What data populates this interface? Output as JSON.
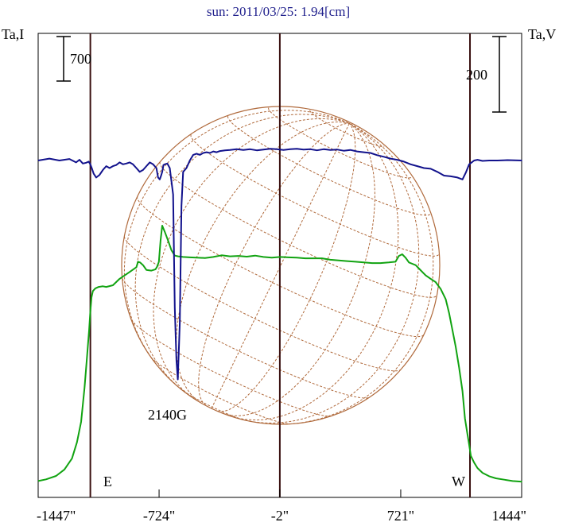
{
  "chart_data": {
    "type": "line",
    "title": "sun: 2011/03/25: 1.94[cm]",
    "left_axis_label": "Ta,I",
    "right_axis_label": "Ta,V",
    "x_ticks": [
      "-1447\"",
      "-724\"",
      "-2\"",
      "721\"",
      "1444\""
    ],
    "x_tick_values": [
      -1447,
      -724,
      -2,
      721,
      1444
    ],
    "xlim": [
      -1447,
      1444
    ],
    "limb_markers": [
      {
        "label": "E",
        "x": -1135
      },
      {
        "label": "W",
        "x": 1135
      }
    ],
    "scale_bars": [
      {
        "series": "Ta,I",
        "label": "700",
        "value": 700
      },
      {
        "series": "Ta,V",
        "label": "200",
        "value": 200
      }
    ],
    "annotation": {
      "text": "2140G",
      "x": -640
    },
    "disk": {
      "has_grid": true,
      "color": "#b06a3c"
    },
    "series": [
      {
        "id": "stokes_I",
        "color": "#11a311",
        "x": [
          -1447,
          -1400,
          -1340,
          -1290,
          -1245,
          -1215,
          -1190,
          -1170,
          -1155,
          -1142,
          -1135,
          -1128,
          -1120,
          -1105,
          -1085,
          -1060,
          -1040,
          -1000,
          -960,
          -900,
          -860,
          -850,
          -838,
          -820,
          -800,
          -770,
          -745,
          -735,
          -725,
          -715,
          -705,
          -690,
          -670,
          -650,
          -630,
          -610,
          -580,
          -540,
          -500,
          -450,
          -400,
          -350,
          -300,
          -250,
          -200,
          -150,
          -100,
          -50,
          0,
          50,
          100,
          150,
          200,
          250,
          300,
          350,
          400,
          450,
          500,
          550,
          600,
          650,
          690,
          710,
          730,
          750,
          770,
          790,
          810,
          830,
          850,
          870,
          900,
          930,
          960,
          990,
          1010,
          1030,
          1050,
          1070,
          1090,
          1105,
          1118,
          1128,
          1140,
          1160,
          1180,
          1210,
          1250,
          1290,
          1340,
          1390,
          1447
        ],
        "y": [
          30,
          55,
          105,
          200,
          360,
          600,
          900,
          1400,
          1850,
          2250,
          2520,
          2730,
          2820,
          2860,
          2880,
          2890,
          2880,
          2905,
          3000,
          3100,
          3170,
          3250,
          3240,
          3200,
          3130,
          3120,
          3140,
          3180,
          3250,
          3560,
          3780,
          3690,
          3560,
          3420,
          3340,
          3330,
          3320,
          3315,
          3310,
          3305,
          3320,
          3345,
          3330,
          3335,
          3325,
          3340,
          3320,
          3310,
          3320,
          3315,
          3310,
          3300,
          3300,
          3300,
          3280,
          3270,
          3260,
          3250,
          3240,
          3230,
          3230,
          3240,
          3250,
          3335,
          3360,
          3310,
          3240,
          3220,
          3200,
          3150,
          3100,
          3050,
          3000,
          2950,
          2850,
          2700,
          2500,
          2250,
          2000,
          1700,
          1350,
          950,
          750,
          600,
          400,
          300,
          220,
          150,
          100,
          70,
          50,
          30,
          20
        ]
      },
      {
        "id": "stokes_V",
        "color": "#12128c",
        "x": [
          -1447,
          -1380,
          -1320,
          -1260,
          -1220,
          -1200,
          -1180,
          -1160,
          -1145,
          -1135,
          -1125,
          -1115,
          -1100,
          -1080,
          -1060,
          -1040,
          -1020,
          -1000,
          -980,
          -960,
          -940,
          -920,
          -900,
          -880,
          -860,
          -840,
          -820,
          -800,
          -780,
          -760,
          -740,
          -730,
          -720,
          -712,
          -705,
          -698,
          -690,
          -675,
          -660,
          -640,
          -630,
          -620,
          -612,
          -600,
          -590,
          -580,
          -560,
          -540,
          -520,
          -500,
          -480,
          -460,
          -440,
          -420,
          -400,
          -380,
          -360,
          -330,
          -300,
          -260,
          -220,
          -180,
          -140,
          -100,
          -60,
          -20,
          20,
          60,
          100,
          140,
          180,
          220,
          260,
          300,
          340,
          380,
          420,
          460,
          500,
          540,
          580,
          620,
          660,
          700,
          740,
          780,
          820,
          860,
          900,
          940,
          980,
          1020,
          1060,
          1090,
          1110,
          1130,
          1145,
          1160,
          1180,
          1210,
          1250,
          1300,
          1360,
          1447
        ],
        "y": [
          0,
          5,
          0,
          4,
          -5,
          2,
          -8,
          -6,
          -3,
          -10,
          -22,
          -35,
          -45,
          -38,
          -25,
          -15,
          -20,
          -15,
          -12,
          -5,
          -10,
          -8,
          -5,
          -10,
          -20,
          -30,
          -25,
          -15,
          -5,
          -10,
          -20,
          -45,
          -50,
          -40,
          -30,
          -12,
          -10,
          -8,
          -20,
          -90,
          -390,
          -530,
          -580,
          -430,
          -120,
          -30,
          -20,
          0,
          15,
          18,
          15,
          20,
          22,
          20,
          24,
          22,
          25,
          27,
          28,
          30,
          28,
          30,
          27,
          29,
          31,
          30,
          28,
          30,
          31,
          29,
          30,
          27,
          30,
          28,
          29,
          26,
          28,
          24,
          22,
          20,
          14,
          10,
          5,
          2,
          -3,
          -10,
          -15,
          -20,
          -22,
          -30,
          -40,
          -42,
          -45,
          -50,
          -32,
          -10,
          -5,
          0,
          2,
          -1,
          0,
          0,
          1,
          0
        ]
      }
    ]
  }
}
